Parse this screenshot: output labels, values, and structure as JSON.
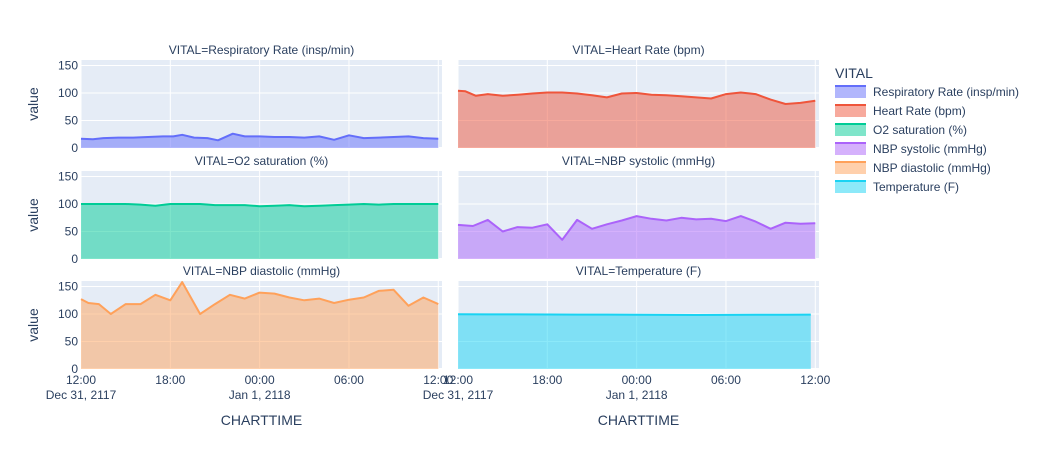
{
  "chart_data": {
    "type": "area",
    "facet_prefix": "VITAL=",
    "xlabel": "CHARTTIME",
    "ylabel": "value",
    "ylim": [
      0,
      160
    ],
    "yticks": [
      0,
      50,
      100,
      150
    ],
    "xlim": [
      0,
      24.25
    ],
    "xtick_hours": [
      0,
      6,
      12,
      18,
      24
    ],
    "xtick_labels": [
      "12:00",
      "18:00",
      "00:00",
      "06:00",
      "12:00"
    ],
    "xtick_sublabels": [
      "Dec 31, 2117",
      "",
      "Jan 1, 2118",
      "",
      ""
    ],
    "x_origin": "2117-12-31 12:00",
    "legend": {
      "title": "VITAL",
      "placement": "right"
    },
    "series": [
      {
        "name": "Respiratory Rate (insp/min)",
        "color": "#636efa",
        "x": [
          0.0,
          0.8,
          1.5,
          2.5,
          3.5,
          4.5,
          5.5,
          6.2,
          6.8,
          7.6,
          8.5,
          9.2,
          10.2,
          11.0,
          12.0,
          13.0,
          14.0,
          15.0,
          16.0,
          17.0,
          18.0,
          19.0,
          20.0,
          21.0,
          22.0,
          23.0,
          24.0
        ],
        "values": [
          17,
          16,
          18,
          19,
          19,
          20,
          21,
          21,
          24,
          19,
          18,
          14,
          26,
          21,
          21,
          20,
          20,
          19,
          21,
          15,
          23,
          18,
          19,
          20,
          21,
          18,
          17
        ]
      },
      {
        "name": "Heart Rate (bpm)",
        "color": "#ef553b",
        "x": [
          0.0,
          0.5,
          1.2,
          2.0,
          3.0,
          4.0,
          5.0,
          6.0,
          7.0,
          8.0,
          9.0,
          10.0,
          11.0,
          12.0,
          13.0,
          14.0,
          15.0,
          16.0,
          17.0,
          18.0,
          19.0,
          20.0,
          21.0,
          22.0,
          23.0,
          24.0
        ],
        "values": [
          104,
          103,
          95,
          98,
          95,
          97,
          99,
          101,
          101,
          99,
          96,
          92,
          99,
          100,
          97,
          96,
          94,
          92,
          90,
          98,
          101,
          98,
          88,
          80,
          82,
          86
        ]
      },
      {
        "name": "O2 saturation (%)",
        "color": "#00cc96",
        "x": [
          0.0,
          1.0,
          2.0,
          3.0,
          4.0,
          5.0,
          6.0,
          7.0,
          8.0,
          9.0,
          10.0,
          11.0,
          12.0,
          13.0,
          14.0,
          15.0,
          16.0,
          17.0,
          18.0,
          19.0,
          20.0,
          21.0,
          22.0,
          23.0,
          24.0
        ],
        "values": [
          100,
          100,
          100,
          100,
          99,
          97,
          100,
          100,
          100,
          98,
          98,
          98,
          96,
          97,
          98,
          96,
          97,
          98,
          99,
          100,
          99,
          100,
          100,
          100,
          100
        ]
      },
      {
        "name": "NBP systolic (mmHg)",
        "color": "#ab63fa",
        "x": [
          0.0,
          1.0,
          2.0,
          3.0,
          4.0,
          5.0,
          6.0,
          7.0,
          8.0,
          9.0,
          10.0,
          11.0,
          12.0,
          13.0,
          14.0,
          15.0,
          16.0,
          17.0,
          18.0,
          19.0,
          20.0,
          21.0,
          22.0,
          23.0,
          24.0
        ],
        "values": [
          62,
          60,
          71,
          50,
          58,
          57,
          63,
          35,
          71,
          55,
          63,
          70,
          78,
          73,
          70,
          75,
          72,
          73,
          69,
          78,
          68,
          55,
          66,
          64,
          65
        ]
      },
      {
        "name": "NBP diastolic (mmHg)",
        "color": "#ffa15a",
        "x": [
          0.0,
          0.5,
          1.2,
          2.0,
          3.0,
          4.0,
          5.0,
          6.0,
          6.8,
          8.0,
          9.0,
          10.0,
          11.0,
          12.0,
          13.0,
          14.0,
          15.0,
          16.0,
          17.0,
          18.0,
          19.0,
          20.0,
          21.0,
          22.0,
          23.0,
          24.0
        ],
        "values": [
          127,
          120,
          118,
          100,
          118,
          118,
          135,
          125,
          158,
          100,
          118,
          135,
          128,
          139,
          137,
          130,
          125,
          128,
          120,
          126,
          130,
          142,
          144,
          115,
          130,
          118
        ]
      },
      {
        "name": "Temperature (F)",
        "color": "#19d3f3",
        "x": [
          0.0,
          2.0,
          4.0,
          6.0,
          8.0,
          10.0,
          12.0,
          14.0,
          16.0,
          18.0,
          20.0,
          22.0,
          23.7
        ],
        "values": [
          99.5,
          99.3,
          99.2,
          99.1,
          99.0,
          98.9,
          98.6,
          98.3,
          98.1,
          98.4,
          98.6,
          98.8,
          99.0
        ]
      }
    ]
  }
}
